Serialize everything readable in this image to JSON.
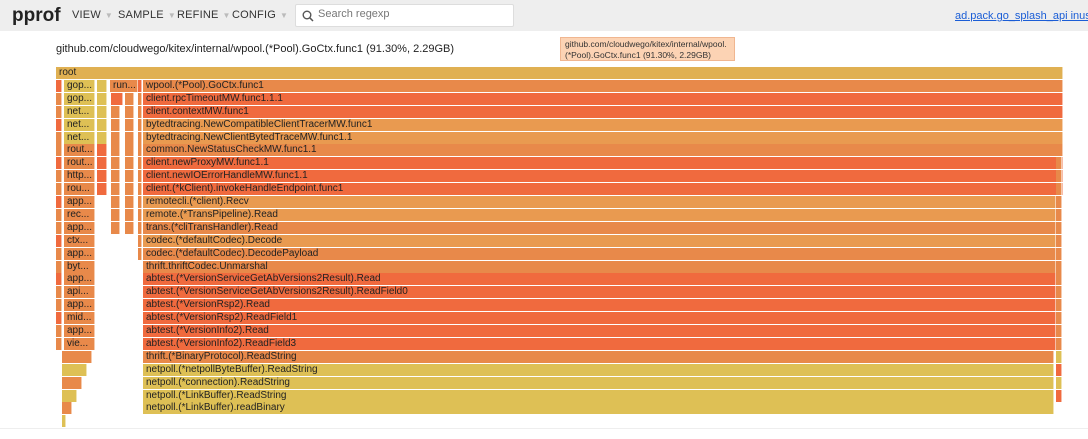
{
  "header": {
    "logo": "pprof",
    "menus": [
      {
        "label": "VIEW"
      },
      {
        "label": "SAMPLE"
      },
      {
        "label": "REFINE"
      },
      {
        "label": "CONFIG"
      }
    ],
    "search_placeholder": "Search regexp",
    "search_icon": "search-icon",
    "profile_link": "ad.pack.go_splash_api inuse_space"
  },
  "subtitle": "github.com/cloudwego/kitex/internal/wpool.(*Pool).GoCtx.func1 (91.30%, 2.29GB)",
  "tooltip": {
    "line1": "github.com/cloudwego/kitex/internal/wpool.",
    "line2": "(*Pool).GoCtx.func1 (91.30%, 2.29GB)"
  },
  "colors": {
    "root": "#e0b052",
    "orange": "#e8894a",
    "light_orange": "#e99a50",
    "red": "#f06a3e",
    "yellow": "#dec055"
  },
  "flame": {
    "root": "root",
    "side_label": "run...",
    "left_labels": [
      "gop...",
      "gop...",
      "net...",
      "net...",
      "net...",
      "rout...",
      "rout...",
      "http...",
      "rou...",
      "app...",
      "rec...",
      "app...",
      "ctx...",
      "app...",
      "byt...",
      "app...",
      "api...",
      "app...",
      "mid...",
      "app...",
      "vie..."
    ],
    "main": [
      {
        "name": "wpool.(*Pool).GoCtx.func1",
        "color": "orange"
      },
      {
        "name": "client.rpcTimeoutMW.func1.1.1",
        "color": "red"
      },
      {
        "name": "client.contextMW.func1",
        "color": "red"
      },
      {
        "name": "bytedtracing.NewCompatibleClientTracerMW.func1",
        "color": "light_orange"
      },
      {
        "name": "bytedtracing.NewClientBytedTraceMW.func1.1",
        "color": "light_orange"
      },
      {
        "name": "common.NewStatusCheckMW.func1.1",
        "color": "orange"
      },
      {
        "name": "client.newProxyMW.func1.1",
        "color": "red"
      },
      {
        "name": "client.newIOErrorHandleMW.func1.1",
        "color": "red"
      },
      {
        "name": "client.(*kClient).invokeHandleEndpoint.func1",
        "color": "red"
      },
      {
        "name": "remotecli.(*client).Recv",
        "color": "light_orange"
      },
      {
        "name": "remote.(*TransPipeline).Read",
        "color": "light_orange"
      },
      {
        "name": "trans.(*cliTransHandler).Read",
        "color": "orange"
      },
      {
        "name": "codec.(*defaultCodec).Decode",
        "color": "light_orange"
      },
      {
        "name": "codec.(*defaultCodec).DecodePayload",
        "color": "orange"
      },
      {
        "name": "thrift.thriftCodec.Unmarshal",
        "color": "orange"
      },
      {
        "name": "abtest.(*VersionServiceGetAbVersions2Result).Read",
        "color": "red"
      },
      {
        "name": "abtest.(*VersionServiceGetAbVersions2Result).ReadField0",
        "color": "red"
      },
      {
        "name": "abtest.(*VersionRsp2).Read",
        "color": "red"
      },
      {
        "name": "abtest.(*VersionRsp2).ReadField1",
        "color": "red"
      },
      {
        "name": "abtest.(*VersionInfo2).Read",
        "color": "red"
      },
      {
        "name": "abtest.(*VersionInfo2).ReadField3",
        "color": "red"
      },
      {
        "name": "thrift.(*BinaryProtocol).ReadString",
        "color": "orange"
      },
      {
        "name": "netpoll.(*netpollByteBuffer).ReadString",
        "color": "yellow"
      },
      {
        "name": "netpoll.(*connection).ReadString",
        "color": "yellow"
      },
      {
        "name": "netpoll.(*LinkBuffer).ReadString",
        "color": "yellow"
      },
      {
        "name": "netpoll.(*LinkBuffer).readBinary",
        "color": "yellow"
      }
    ]
  }
}
